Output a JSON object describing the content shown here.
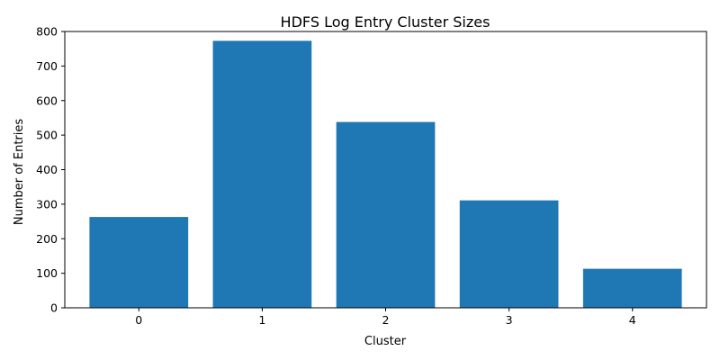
{
  "chart_data": {
    "type": "bar",
    "title": "HDFS Log Entry Cluster Sizes",
    "xlabel": "Cluster",
    "ylabel": "Number of Entries",
    "categories": [
      "0",
      "1",
      "2",
      "3",
      "4"
    ],
    "values": [
      263,
      773,
      538,
      311,
      113
    ],
    "ylim": [
      0,
      800
    ],
    "yticks": [
      0,
      100,
      200,
      300,
      400,
      500,
      600,
      700,
      800
    ],
    "grid": false,
    "bar_color": "#1f77b4"
  }
}
